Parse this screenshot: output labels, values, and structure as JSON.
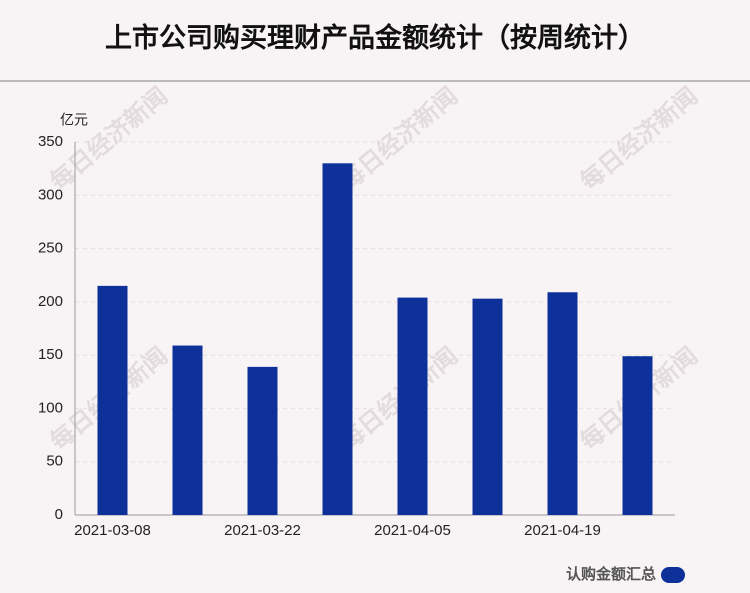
{
  "chart_data": {
    "type": "bar",
    "title": "上市公司购买理财产品金额统计（按周统计）",
    "y_label": "亿元",
    "watermark": "每日经济新闻",
    "categories": [
      "2021-03-08",
      null,
      "2021-03-22",
      null,
      "2021-04-05",
      null,
      "2021-04-19",
      null
    ],
    "series": [
      {
        "name": "认购金额汇总",
        "color": "#0d3199",
        "values": [
          215,
          159,
          139,
          330,
          204,
          203,
          209,
          149
        ]
      }
    ],
    "ylim": [
      0,
      350
    ],
    "yticks": [
      0,
      50,
      100,
      150,
      200,
      250,
      300,
      350
    ],
    "grid": true,
    "legend": "bottom-right"
  }
}
